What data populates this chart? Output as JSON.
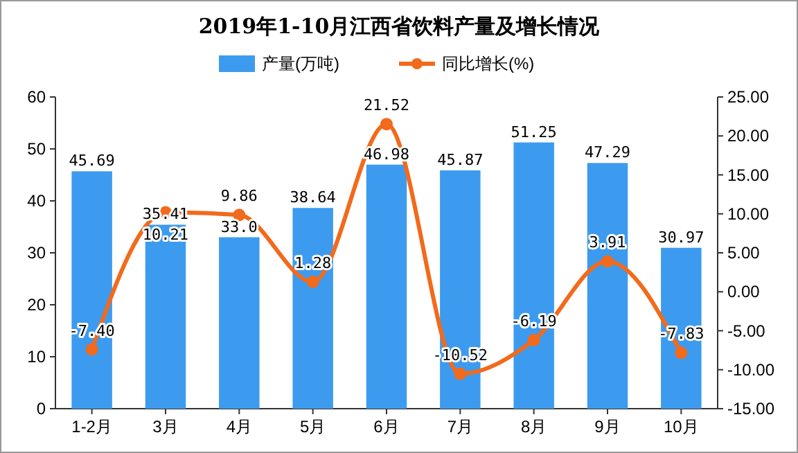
{
  "chart_data": {
    "type": "bar",
    "title": "2019年1-10月江西省饮料产量及增长情况",
    "categories": [
      "1-2月",
      "3月",
      "4月",
      "5月",
      "6月",
      "7月",
      "8月",
      "9月",
      "10月"
    ],
    "series": [
      {
        "name": "产量(万吨)",
        "color": "#3d9bef",
        "values": [
          45.69,
          35.41,
          33.0,
          38.64,
          46.98,
          45.87,
          51.25,
          47.29,
          30.97
        ],
        "value_labels": [
          "45.69",
          "35.41",
          "33.0",
          "38.64",
          "46.98",
          "45.87",
          "51.25",
          "47.29",
          "30.97"
        ]
      },
      {
        "name": "同比增长(%)",
        "type": "line",
        "axis": "y2",
        "color": "#f26a1b",
        "marker": "circle",
        "values": [
          -7.4,
          10.21,
          9.86,
          1.28,
          21.52,
          -10.52,
          -6.19,
          3.91,
          -7.83
        ],
        "value_labels": [
          "-7.40",
          "10.21",
          "9.86",
          "1.28",
          "21.52",
          "-10.52",
          "-6.19",
          "3.91",
          "-7.83"
        ]
      }
    ],
    "ylim": [
      0,
      60
    ],
    "yticks": [
      0,
      10,
      20,
      30,
      40,
      50,
      60
    ],
    "y2lim": [
      -15,
      25
    ],
    "y2ticks": [
      {
        "value": -15,
        "label": "-15.00"
      },
      {
        "value": -10,
        "label": "-10.00"
      },
      {
        "value": -5,
        "label": "-5.00"
      },
      {
        "value": 0,
        "label": "0.00"
      },
      {
        "value": 5,
        "label": "5.00"
      },
      {
        "value": 10,
        "label": "10.00"
      },
      {
        "value": 15,
        "label": "15.00"
      },
      {
        "value": 20,
        "label": "20.00"
      },
      {
        "value": 25,
        "label": "25.00"
      }
    ],
    "legend": "top"
  }
}
